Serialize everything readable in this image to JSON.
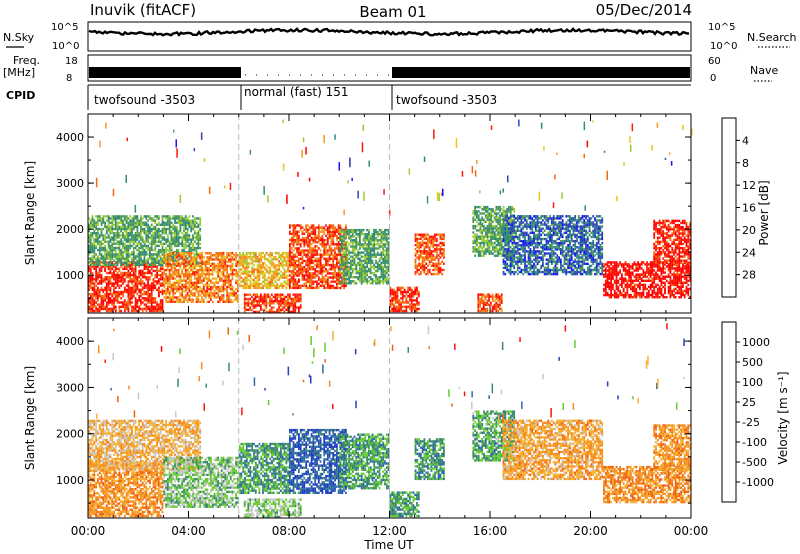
{
  "header": {
    "station": "Inuvik (fitACF)",
    "beam": "Beam 01",
    "date": "05/Dec/2014"
  },
  "top_panels": {
    "nsky_label": "N.Sky",
    "nsky_ticks": [
      "10^5",
      "10^0"
    ],
    "nsearch_label": "N.Search",
    "freq_label_1": "Freq.",
    "freq_label_2": "[MHz]",
    "freq_ticks": [
      "18",
      "8"
    ],
    "nave_label": "Nave",
    "nave_ticks": [
      "60",
      "0"
    ],
    "cpid_label": "CPID",
    "cpid_segments": [
      {
        "label": "twofsound -3503",
        "start_h": 0,
        "end_h": 6
      },
      {
        "label": "normal (fast) 151",
        "start_h": 6,
        "end_h": 12
      },
      {
        "label": "twofsound -3503",
        "start_h": 12,
        "end_h": 24
      }
    ]
  },
  "chart_data": [
    {
      "type": "heatmap",
      "title": "",
      "quantity": "Power",
      "xlabel": "",
      "ylabel": "Slant Range [km]",
      "x_ticks": [
        "00:00",
        "04:00",
        "08:00",
        "12:00",
        "16:00",
        "20:00",
        "00:00"
      ],
      "xlim_hours": [
        0,
        24
      ],
      "y_ticks": [
        1000,
        2000,
        3000,
        4000
      ],
      "ylim": [
        180,
        4500
      ],
      "colorbar": {
        "label": "Power [dB]",
        "ticks": [
          "4",
          "8",
          "12",
          "16",
          "20",
          "24",
          "28"
        ],
        "colors": [
          "#1414ff",
          "#2c45b8",
          "#2f8a7a",
          "#4f9a55",
          "#99cc33",
          "#e6c820",
          "#f59a20",
          "#f56a10",
          "#ff1a0a",
          "#ff0000"
        ]
      },
      "echo_regions": [
        {
          "t0": 0.0,
          "t1": 3.0,
          "r0": 200,
          "r1": 1300,
          "v": 0.85
        },
        {
          "t0": 0.0,
          "t1": 4.5,
          "r0": 1200,
          "r1": 2300,
          "v": 0.35
        },
        {
          "t0": 3.0,
          "t1": 6.0,
          "r0": 400,
          "r1": 1500,
          "v": 0.7
        },
        {
          "t0": 6.0,
          "t1": 8.0,
          "r0": 700,
          "r1": 1500,
          "v": 0.6
        },
        {
          "t0": 6.2,
          "t1": 8.5,
          "r0": 180,
          "r1": 600,
          "v": 0.82
        },
        {
          "t0": 8.0,
          "t1": 10.3,
          "r0": 700,
          "r1": 2100,
          "v": 0.8
        },
        {
          "t0": 10.0,
          "t1": 12.0,
          "r0": 800,
          "r1": 2000,
          "v": 0.35
        },
        {
          "t0": 12.0,
          "t1": 13.2,
          "r0": 200,
          "r1": 750,
          "v": 0.85
        },
        {
          "t0": 13.0,
          "t1": 14.2,
          "r0": 1000,
          "r1": 1900,
          "v": 0.78
        },
        {
          "t0": 15.3,
          "t1": 17.0,
          "r0": 1400,
          "r1": 2500,
          "v": 0.35
        },
        {
          "t0": 15.5,
          "t1": 16.5,
          "r0": 200,
          "r1": 600,
          "v": 0.8
        },
        {
          "t0": 16.5,
          "t1": 20.5,
          "r0": 1000,
          "r1": 2300,
          "v": 0.2
        },
        {
          "t0": 20.5,
          "t1": 24.0,
          "r0": 500,
          "r1": 1300,
          "v": 0.92
        },
        {
          "t0": 22.5,
          "t1": 24.0,
          "r0": 1200,
          "r1": 2200,
          "v": 0.88
        }
      ]
    },
    {
      "type": "heatmap",
      "title": "",
      "quantity": "Velocity",
      "xlabel": "Time UT",
      "ylabel": "Slant Range [km]",
      "x_ticks": [
        "00:00",
        "04:00",
        "08:00",
        "12:00",
        "16:00",
        "20:00",
        "00:00"
      ],
      "xlim_hours": [
        0,
        24
      ],
      "y_ticks": [
        1000,
        2000,
        3000,
        4000
      ],
      "ylim": [
        180,
        4500
      ],
      "colorbar": {
        "label": "Velocity [m s⁻¹]",
        "ticks": [
          "1000",
          "500",
          "100",
          "25",
          "-25",
          "-100",
          "-500",
          "-1000"
        ],
        "colors": [
          "#2040c0",
          "#2f6aa8",
          "#3d8c6a",
          "#66cc33",
          "#c8c8c8",
          "#f5b030",
          "#f58a20",
          "#f06010",
          "#ff1010"
        ]
      },
      "echo_regions": [
        {
          "t0": 0.0,
          "t1": 3.0,
          "r0": 200,
          "r1": 1400,
          "v": 0.7
        },
        {
          "t0": 0.0,
          "t1": 4.5,
          "r0": 1200,
          "r1": 2300,
          "v": 0.62
        },
        {
          "t0": 3.0,
          "t1": 6.0,
          "r0": 400,
          "r1": 1500,
          "v": 0.4
        },
        {
          "t0": 6.0,
          "t1": 8.0,
          "r0": 700,
          "r1": 1800,
          "v": 0.3
        },
        {
          "t0": 6.2,
          "t1": 8.5,
          "r0": 180,
          "r1": 600,
          "v": 0.42
        },
        {
          "t0": 8.0,
          "t1": 10.3,
          "r0": 700,
          "r1": 2100,
          "v": 0.12
        },
        {
          "t0": 10.0,
          "t1": 12.0,
          "r0": 800,
          "r1": 2000,
          "v": 0.3
        },
        {
          "t0": 12.0,
          "t1": 13.2,
          "r0": 200,
          "r1": 750,
          "v": 0.3
        },
        {
          "t0": 13.0,
          "t1": 14.2,
          "r0": 1000,
          "r1": 1900,
          "v": 0.28
        },
        {
          "t0": 15.3,
          "t1": 17.0,
          "r0": 1400,
          "r1": 2500,
          "v": 0.32
        },
        {
          "t0": 16.5,
          "t1": 20.5,
          "r0": 1000,
          "r1": 2300,
          "v": 0.66
        },
        {
          "t0": 20.5,
          "t1": 24.0,
          "r0": 500,
          "r1": 1300,
          "v": 0.72
        },
        {
          "t0": 22.5,
          "t1": 24.0,
          "r0": 1200,
          "r1": 2200,
          "v": 0.7
        }
      ]
    }
  ],
  "colors": {
    "axis": "#000000",
    "dashed_line": "#bbbbbb"
  }
}
